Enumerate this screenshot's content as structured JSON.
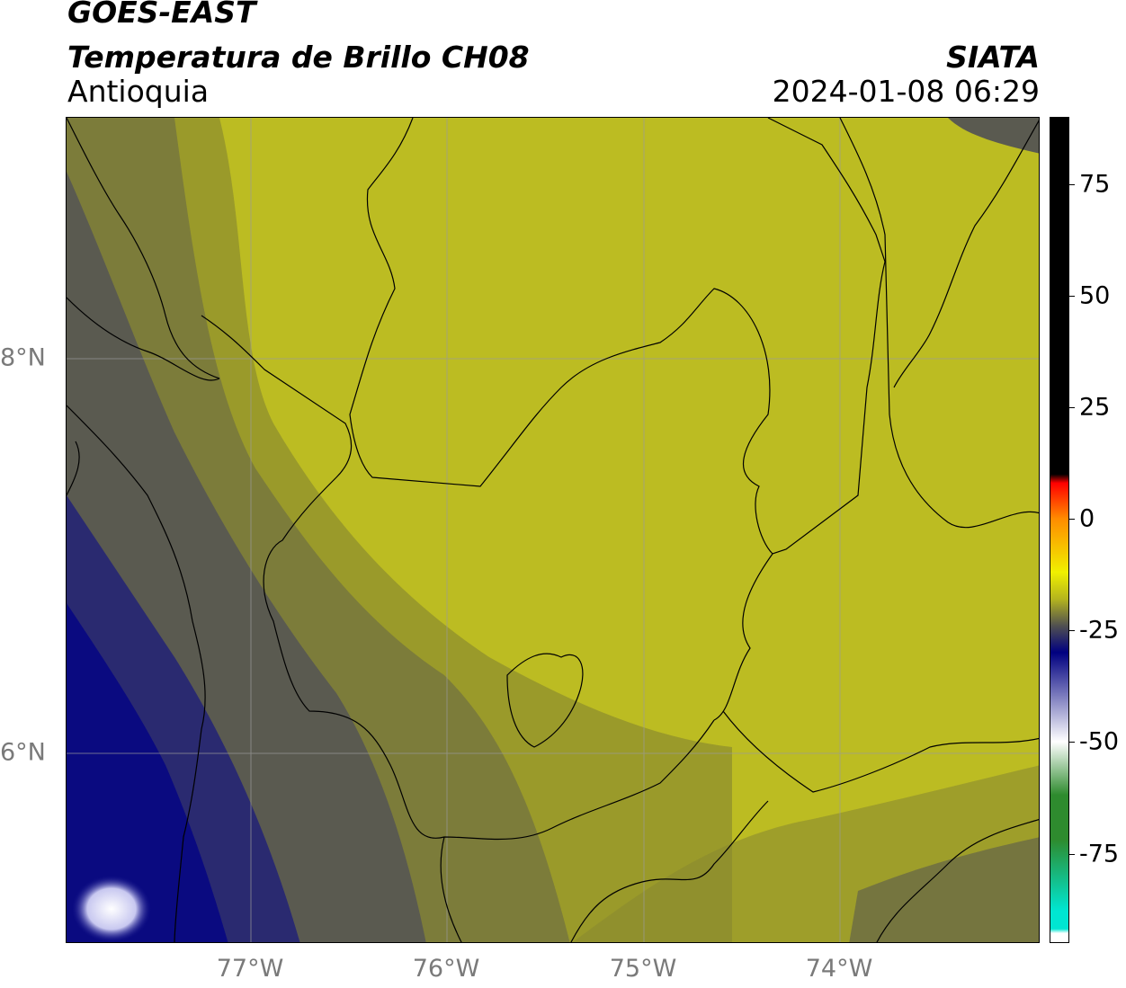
{
  "header": {
    "satellite": "GOES-EAST",
    "product": "Temperatura de Brillo CH08",
    "region": "Antioquia",
    "organization": "SIATA",
    "timestamp": "2024-01-08 06:29"
  },
  "map": {
    "longitude_ticks": [
      "77°W",
      "76°W",
      "75°W",
      "74°W"
    ],
    "latitude_ticks": [
      "8°N",
      "6°N"
    ]
  },
  "colorbar": {
    "tick_labels": [
      "75",
      "50",
      "25",
      "0",
      "-25",
      "-50",
      "-75"
    ],
    "tick_values": [
      75,
      50,
      25,
      0,
      -25,
      -50,
      -75
    ],
    "range": [
      -95,
      90
    ],
    "colors": {
      "black": "#000000",
      "red": "#ff0000",
      "orange": "#ff8c00",
      "yellow": "#f0f000",
      "olive": "#b4b41e",
      "gray": "#505050",
      "navy": "#000080",
      "white": "#ffffff",
      "green": "#2e8b2e",
      "cyan": "#00e6d2"
    }
  }
}
